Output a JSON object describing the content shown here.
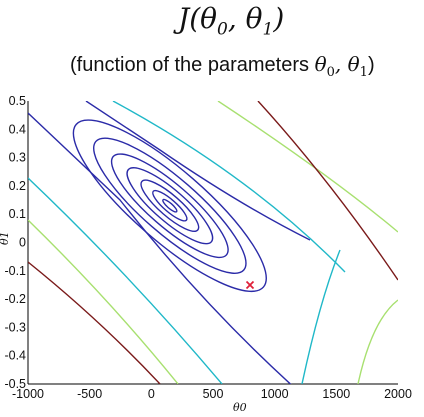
{
  "title": {
    "main": "J(",
    "t0": "θ",
    "t0sub": "0",
    "comma": ", ",
    "t1": "θ",
    "t1sub": "1",
    "close": ")"
  },
  "subtitle": {
    "text": "(function of the parameters ",
    "t0": "θ",
    "t0sub": "0",
    "comma": ", ",
    "t1": "θ",
    "t1sub": "1",
    "close": ")"
  },
  "colors": {
    "inner": "#2b2ba8",
    "cyan": "#20b8c8",
    "green": "#a8e070",
    "brown": "#7a1a1a",
    "marker": "#e0203a"
  },
  "chart_data": {
    "type": "contour",
    "title": "J(θ0, θ1)",
    "xlabel": "θ0",
    "ylabel": "θ1",
    "xlim": [
      -1000,
      2000
    ],
    "ylim": [
      -0.5,
      0.5
    ],
    "x_ticks": [
      "-1000",
      "-500",
      "0",
      "500",
      "1000",
      "1500",
      "2000"
    ],
    "y_ticks": [
      "0.5",
      "0.4",
      "0.3",
      "0.2",
      "0.1",
      "0",
      "-0.1",
      "-0.2",
      "-0.3",
      "-0.4",
      "-0.5"
    ],
    "minimum": {
      "x": 150,
      "y": 0.13
    },
    "marker": {
      "x": 800,
      "y": -0.15
    }
  }
}
